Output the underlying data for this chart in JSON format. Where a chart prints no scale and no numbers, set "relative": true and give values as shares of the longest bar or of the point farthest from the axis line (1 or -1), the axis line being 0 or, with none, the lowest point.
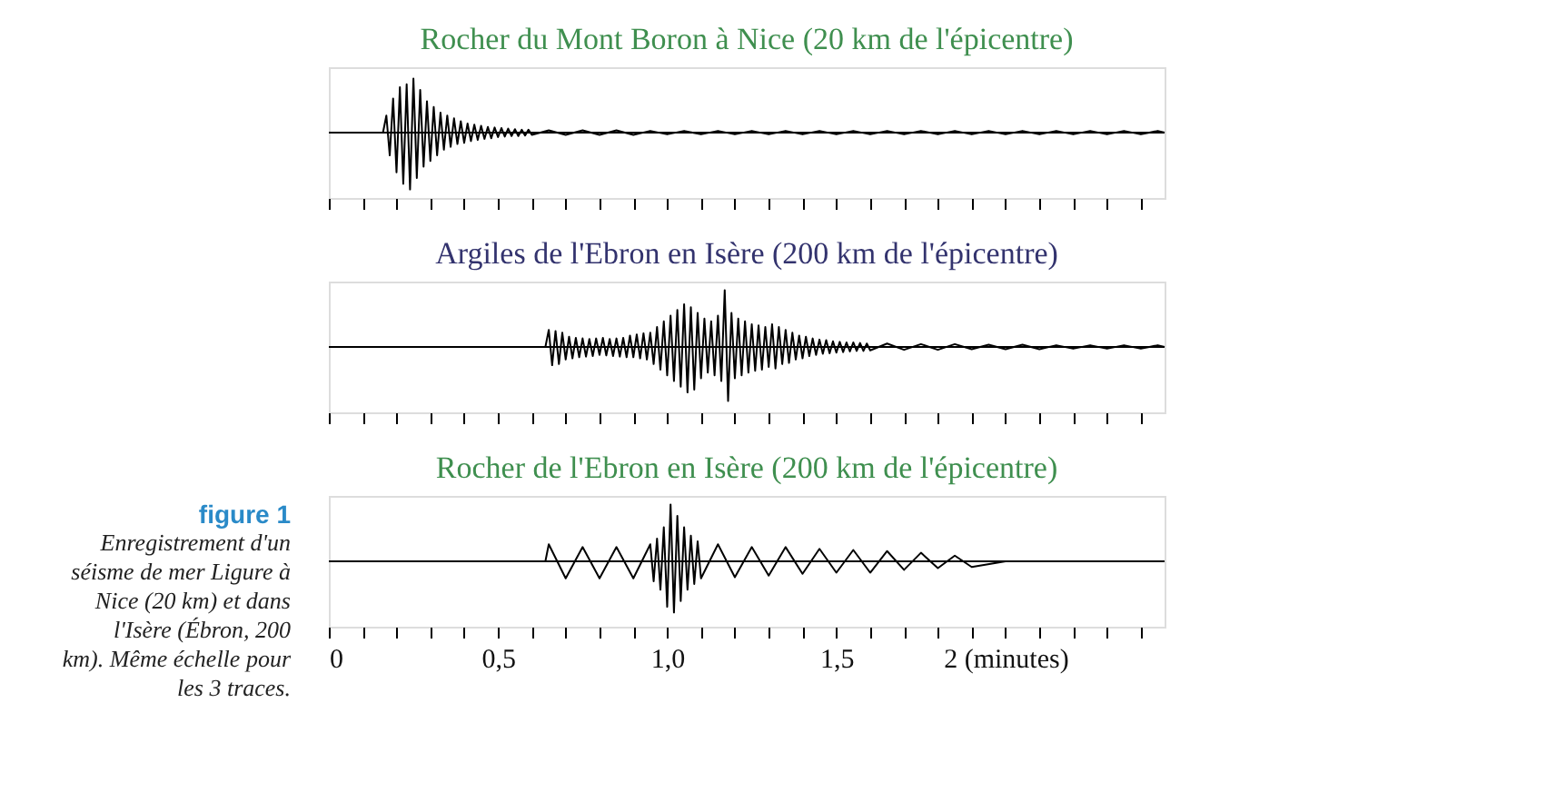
{
  "chart_data": [
    {
      "type": "line",
      "relative": true,
      "title": "Rocher du Mont Boron à Nice (20 km de l'épicentre)",
      "tick_labels": false,
      "annotations": [
        "figure 1",
        "Enregistrement d'un séisme de mer Ligure à Nice (20 km) et dans l'Isère (Ébron, 200 km). Même échelle pour les 3 traces."
      ],
      "xlim": [
        0,
        2.47
      ],
      "xticks": [
        0,
        0.1,
        0.2,
        0.3,
        0.4,
        0.5,
        0.6,
        0.7,
        0.8,
        0.9,
        1.0,
        1.1,
        1.2,
        1.3,
        1.4,
        1.5,
        1.6,
        1.7,
        1.8,
        1.9,
        2,
        2.1,
        2.2,
        2.3,
        2.4
      ],
      "series": [
        {
          "color": "#000000",
          "x": [
            0,
            0.16,
            0.17,
            0.18,
            0.19,
            0.2,
            0.21,
            0.22,
            0.23,
            0.24,
            0.25,
            0.26,
            0.27,
            0.28,
            0.29,
            0.3,
            0.31,
            0.32,
            0.33,
            0.34,
            0.35,
            0.36,
            0.37,
            0.38,
            0.39,
            0.4,
            0.41,
            0.42,
            0.43,
            0.44,
            0.45,
            0.46,
            0.47,
            0.48,
            0.49,
            0.5,
            0.51,
            0.52,
            0.53,
            0.54,
            0.55,
            0.56,
            0.57,
            0.58,
            0.59,
            0.6,
            0.65,
            0.7,
            0.75,
            0.8,
            0.85,
            0.9,
            0.95,
            1.0,
            1.05,
            1.1,
            1.15,
            1.2,
            1.25,
            1.3,
            1.35,
            1.4,
            1.45,
            1.5,
            1.55,
            1.6,
            1.65,
            1.7,
            1.75,
            1.8,
            1.85,
            1.9,
            1.95,
            2.0,
            2.05,
            2.1,
            2.15,
            2.2,
            2.25,
            2.3,
            2.35,
            2.4,
            2.45,
            2.47
          ],
          "values": [
            0,
            0,
            0.3,
            -0.4,
            0.6,
            -0.7,
            0.8,
            -0.9,
            0.85,
            -1,
            0.95,
            -0.8,
            0.75,
            -0.6,
            0.55,
            -0.5,
            0.45,
            -0.4,
            0.35,
            -0.3,
            0.3,
            -0.25,
            0.25,
            -0.2,
            0.2,
            -0.18,
            0.16,
            -0.15,
            0.14,
            -0.13,
            0.12,
            -0.11,
            0.1,
            -0.1,
            0.09,
            -0.08,
            0.08,
            -0.07,
            0.07,
            -0.06,
            0.06,
            -0.06,
            0.05,
            -0.05,
            0.05,
            -0.04,
            0.04,
            -0.04,
            0.04,
            -0.04,
            0.04,
            -0.04,
            0.03,
            -0.03,
            0.03,
            -0.03,
            0.03,
            -0.03,
            0.03,
            -0.03,
            0.03,
            -0.03,
            0.03,
            -0.03,
            0.03,
            -0.03,
            0.03,
            -0.03,
            0.03,
            -0.03,
            0.03,
            -0.03,
            0.03,
            -0.03,
            0.03,
            -0.03,
            0.03,
            -0.03,
            0.03,
            -0.03,
            0.03,
            -0.03,
            0.03,
            0
          ]
        }
      ]
    },
    {
      "type": "line",
      "relative": true,
      "title": "Argiles de l'Ebron en Isère (200 km de l'épicentre)",
      "tick_labels": false,
      "xlim": [
        0,
        2.47
      ],
      "xticks": [
        0,
        0.1,
        0.2,
        0.3,
        0.4,
        0.5,
        0.6,
        0.7,
        0.8,
        0.9,
        1.0,
        1.1,
        1.2,
        1.3,
        1.4,
        1.5,
        1.6,
        1.7,
        1.8,
        1.9,
        2,
        2.1,
        2.2,
        2.3,
        2.4
      ],
      "series": [
        {
          "color": "#000000",
          "x": [
            0,
            0.64,
            0.65,
            0.66,
            0.67,
            0.68,
            0.69,
            0.7,
            0.71,
            0.72,
            0.73,
            0.74,
            0.75,
            0.76,
            0.77,
            0.78,
            0.79,
            0.8,
            0.81,
            0.82,
            0.83,
            0.84,
            0.85,
            0.86,
            0.87,
            0.88,
            0.89,
            0.9,
            0.91,
            0.92,
            0.93,
            0.94,
            0.95,
            0.96,
            0.97,
            0.98,
            0.99,
            1.0,
            1.01,
            1.02,
            1.03,
            1.04,
            1.05,
            1.06,
            1.07,
            1.08,
            1.09,
            1.1,
            1.11,
            1.12,
            1.13,
            1.14,
            1.15,
            1.16,
            1.17,
            1.18,
            1.19,
            1.2,
            1.21,
            1.22,
            1.23,
            1.24,
            1.25,
            1.26,
            1.27,
            1.28,
            1.29,
            1.3,
            1.31,
            1.32,
            1.33,
            1.34,
            1.35,
            1.36,
            1.37,
            1.38,
            1.39,
            1.4,
            1.41,
            1.42,
            1.43,
            1.44,
            1.45,
            1.46,
            1.47,
            1.48,
            1.49,
            1.5,
            1.51,
            1.52,
            1.53,
            1.54,
            1.55,
            1.56,
            1.57,
            1.58,
            1.59,
            1.6,
            1.65,
            1.7,
            1.75,
            1.8,
            1.85,
            1.9,
            1.95,
            2.0,
            2.05,
            2.1,
            2.15,
            2.2,
            2.25,
            2.3,
            2.35,
            2.4,
            2.45,
            2.47
          ],
          "values": [
            0,
            0,
            0.3,
            -0.32,
            0.28,
            -0.3,
            0.25,
            -0.22,
            0.18,
            -0.2,
            0.16,
            -0.18,
            0.15,
            -0.17,
            0.14,
            -0.16,
            0.15,
            -0.14,
            0.16,
            -0.15,
            0.14,
            -0.16,
            0.15,
            -0.17,
            0.16,
            -0.18,
            0.2,
            -0.18,
            0.22,
            -0.2,
            0.24,
            -0.22,
            0.25,
            -0.3,
            0.35,
            -0.4,
            0.45,
            -0.5,
            0.55,
            -0.6,
            0.65,
            -0.7,
            0.75,
            -0.8,
            0.7,
            -0.75,
            0.6,
            -0.55,
            0.5,
            -0.45,
            0.45,
            -0.5,
            0.55,
            -0.6,
            1,
            -0.95,
            0.6,
            -0.55,
            0.5,
            -0.5,
            0.45,
            -0.45,
            0.4,
            -0.42,
            0.38,
            -0.4,
            0.35,
            -0.35,
            0.4,
            -0.38,
            0.35,
            -0.3,
            0.3,
            -0.28,
            0.25,
            -0.22,
            0.2,
            -0.2,
            0.18,
            -0.16,
            0.15,
            -0.14,
            0.13,
            -0.12,
            0.12,
            -0.11,
            0.1,
            -0.1,
            0.09,
            -0.09,
            0.08,
            -0.08,
            0.08,
            -0.07,
            0.07,
            -0.07,
            0.06,
            -0.06,
            0.06,
            -0.05,
            0.05,
            -0.05,
            0.05,
            -0.04,
            0.04,
            -0.04,
            0.04,
            -0.04,
            0.03,
            -0.03,
            0.03,
            -0.03,
            0.03,
            -0.03,
            0.03,
            0
          ]
        }
      ]
    },
    {
      "type": "line",
      "relative": true,
      "title": "Rocher de l'Ebron en Isère (200 km de l'épicentre)",
      "tick_labels": "x",
      "xlim": [
        0,
        2.47
      ],
      "xticks": [
        {
          "value": 0,
          "label": "0"
        },
        {
          "value": 0.1,
          "label": null
        },
        {
          "value": 0.2,
          "label": null
        },
        {
          "value": 0.3,
          "label": null
        },
        {
          "value": 0.4,
          "label": null
        },
        {
          "value": 0.5,
          "label": "0,5"
        },
        {
          "value": 0.6,
          "label": null
        },
        {
          "value": 0.7,
          "label": null
        },
        {
          "value": 0.8,
          "label": null
        },
        {
          "value": 0.9,
          "label": null
        },
        {
          "value": 1.0,
          "label": "1,0"
        },
        {
          "value": 1.1,
          "label": null
        },
        {
          "value": 1.2,
          "label": null
        },
        {
          "value": 1.3,
          "label": null
        },
        {
          "value": 1.4,
          "label": null
        },
        {
          "value": 1.5,
          "label": "1,5"
        },
        {
          "value": 1.6,
          "label": null
        },
        {
          "value": 1.7,
          "label": null
        },
        {
          "value": 1.8,
          "label": null
        },
        {
          "value": 1.9,
          "label": null
        },
        {
          "value": 2,
          "label": "2 (minutes)"
        },
        {
          "value": 2.1,
          "label": null
        },
        {
          "value": 2.2,
          "label": null
        },
        {
          "value": 2.3,
          "label": null
        },
        {
          "value": 2.4,
          "label": null
        }
      ],
      "series": [
        {
          "color": "#000000",
          "x": [
            0,
            0.64,
            0.65,
            0.7,
            0.75,
            0.8,
            0.85,
            0.9,
            0.95,
            0.96,
            0.97,
            0.98,
            0.99,
            1.0,
            1.01,
            1.02,
            1.03,
            1.04,
            1.05,
            1.06,
            1.07,
            1.08,
            1.09,
            1.1,
            1.15,
            1.2,
            1.25,
            1.3,
            1.35,
            1.4,
            1.45,
            1.5,
            1.55,
            1.6,
            1.65,
            1.7,
            1.75,
            1.8,
            1.85,
            1.9,
            2.0,
            2.47
          ],
          "values": [
            0,
            0,
            0.3,
            -0.3,
            0.25,
            -0.3,
            0.25,
            -0.3,
            0.3,
            -0.35,
            0.4,
            -0.5,
            0.6,
            -0.8,
            1,
            -0.9,
            0.8,
            -0.7,
            0.6,
            -0.5,
            0.45,
            -0.4,
            0.35,
            -0.3,
            0.3,
            -0.28,
            0.25,
            -0.25,
            0.25,
            -0.22,
            0.22,
            -0.2,
            0.2,
            -0.2,
            0.18,
            -0.15,
            0.15,
            -0.12,
            0.1,
            -0.1,
            0,
            0
          ]
        }
      ]
    }
  ]
}
